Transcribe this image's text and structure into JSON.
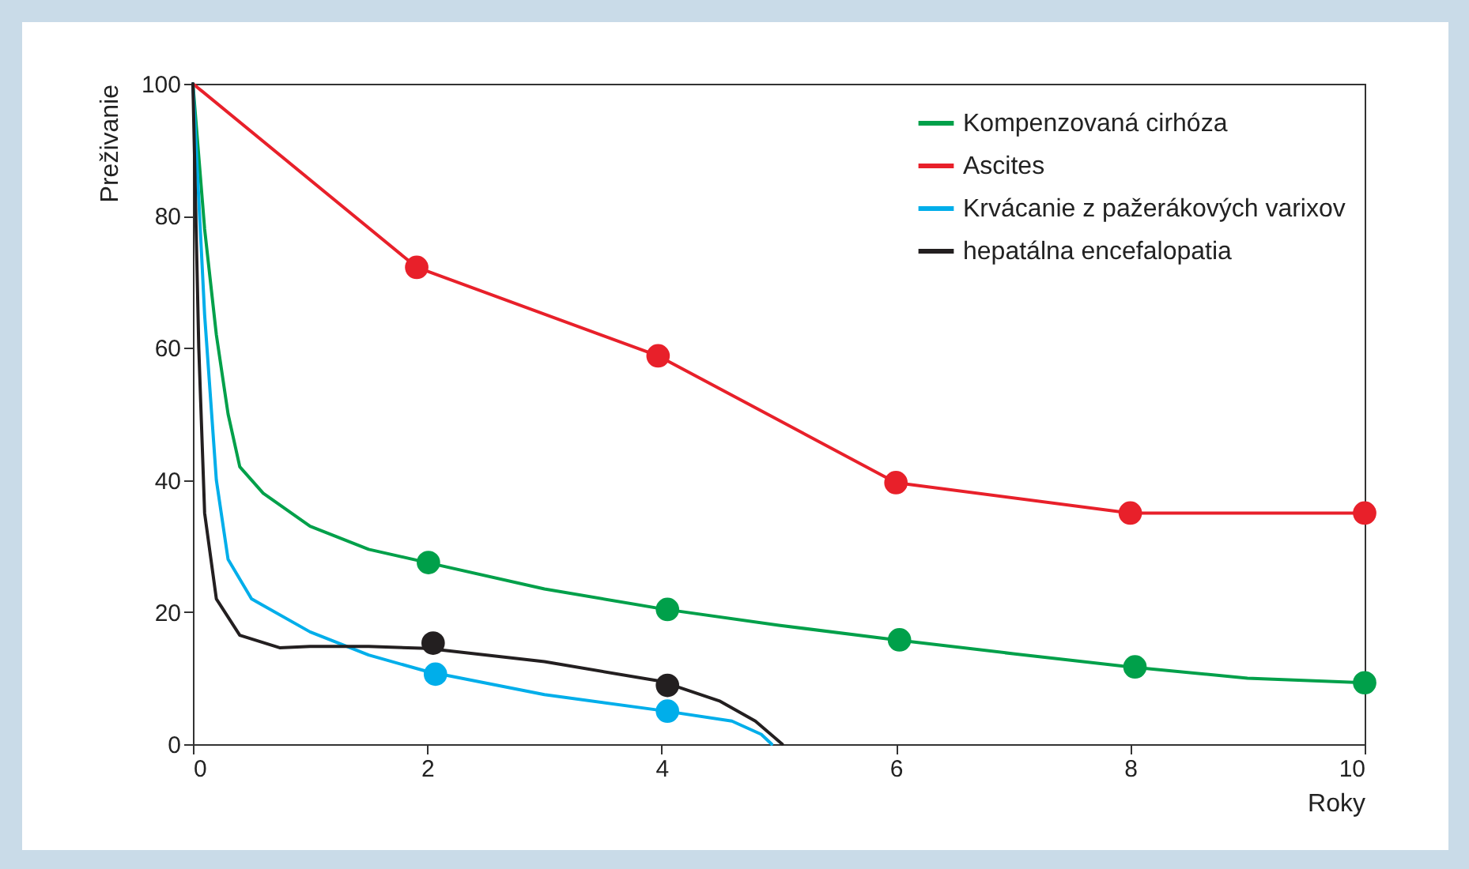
{
  "chart_data": {
    "type": "line",
    "xlabel": "Roky",
    "ylabel": "Preživanie",
    "xlim": [
      0,
      10
    ],
    "xticks": [
      0,
      2,
      4,
      6,
      8,
      10
    ],
    "ylim": [
      0,
      100
    ],
    "yticks": [
      0,
      20,
      40,
      60,
      80,
      100
    ],
    "grid": false,
    "legend": "top right",
    "series": [
      {
        "name": "Kompenzovaná cirhóza",
        "color": "#00a04a",
        "x": [
          0,
          0.1,
          0.2,
          0.3,
          0.4,
          0.6,
          1,
          1.5,
          2,
          3,
          4,
          5,
          6,
          7,
          8,
          9,
          10
        ],
        "values": [
          100,
          78,
          62,
          50,
          42,
          38,
          33,
          29.5,
          27.5,
          23.5,
          20.5,
          18,
          15.8,
          13.7,
          11.7,
          10,
          9.3
        ]
      },
      {
        "name": "Ascites",
        "color": "#e8202a",
        "x": [
          0,
          1.91,
          3.97,
          6,
          8,
          10
        ],
        "values": [
          100,
          72.2,
          58.8,
          39.6,
          35,
          35
        ]
      },
      {
        "name": "Krvácanie z pažerákových varixov",
        "color": "#00aeea",
        "x": [
          0,
          0.1,
          0.2,
          0.3,
          0.5,
          1,
          1.5,
          2,
          3,
          4,
          4.6,
          4.85,
          4.94
        ],
        "values": [
          100,
          65,
          40,
          28,
          22,
          17,
          13.5,
          11,
          7.5,
          5.1,
          3.5,
          1.5,
          0
        ]
      },
      {
        "name": "hepatálna encefalopatia",
        "color": "#231f20",
        "x": [
          0,
          0.05,
          0.1,
          0.2,
          0.4,
          0.74,
          1,
          1.5,
          2,
          3,
          4,
          4.5,
          4.8,
          5.03
        ],
        "values": [
          100,
          60,
          35,
          22,
          16.5,
          14.6,
          14.8,
          14.8,
          14.5,
          12.5,
          9.5,
          6.5,
          3.5,
          0
        ]
      },
      {
        "type": "scatter",
        "color": "#00a04a",
        "x": [
          2.01,
          4.05,
          6.03,
          8.04,
          10
        ],
        "values": [
          27.5,
          20.4,
          15.8,
          11.7,
          9.3
        ]
      },
      {
        "type": "scatter",
        "color": "#e8202a",
        "x": [
          1.91,
          3.97,
          6,
          8,
          10
        ],
        "values": [
          72.2,
          58.8,
          39.6,
          35,
          35
        ]
      },
      {
        "type": "scatter",
        "color": "#00aeea",
        "x": [
          2.07,
          4.05
        ],
        "values": [
          10.6,
          5
        ]
      },
      {
        "type": "scatter",
        "color": "#231f20",
        "x": [
          2.05,
          4.05
        ],
        "values": [
          15.3,
          8.9
        ]
      }
    ]
  }
}
